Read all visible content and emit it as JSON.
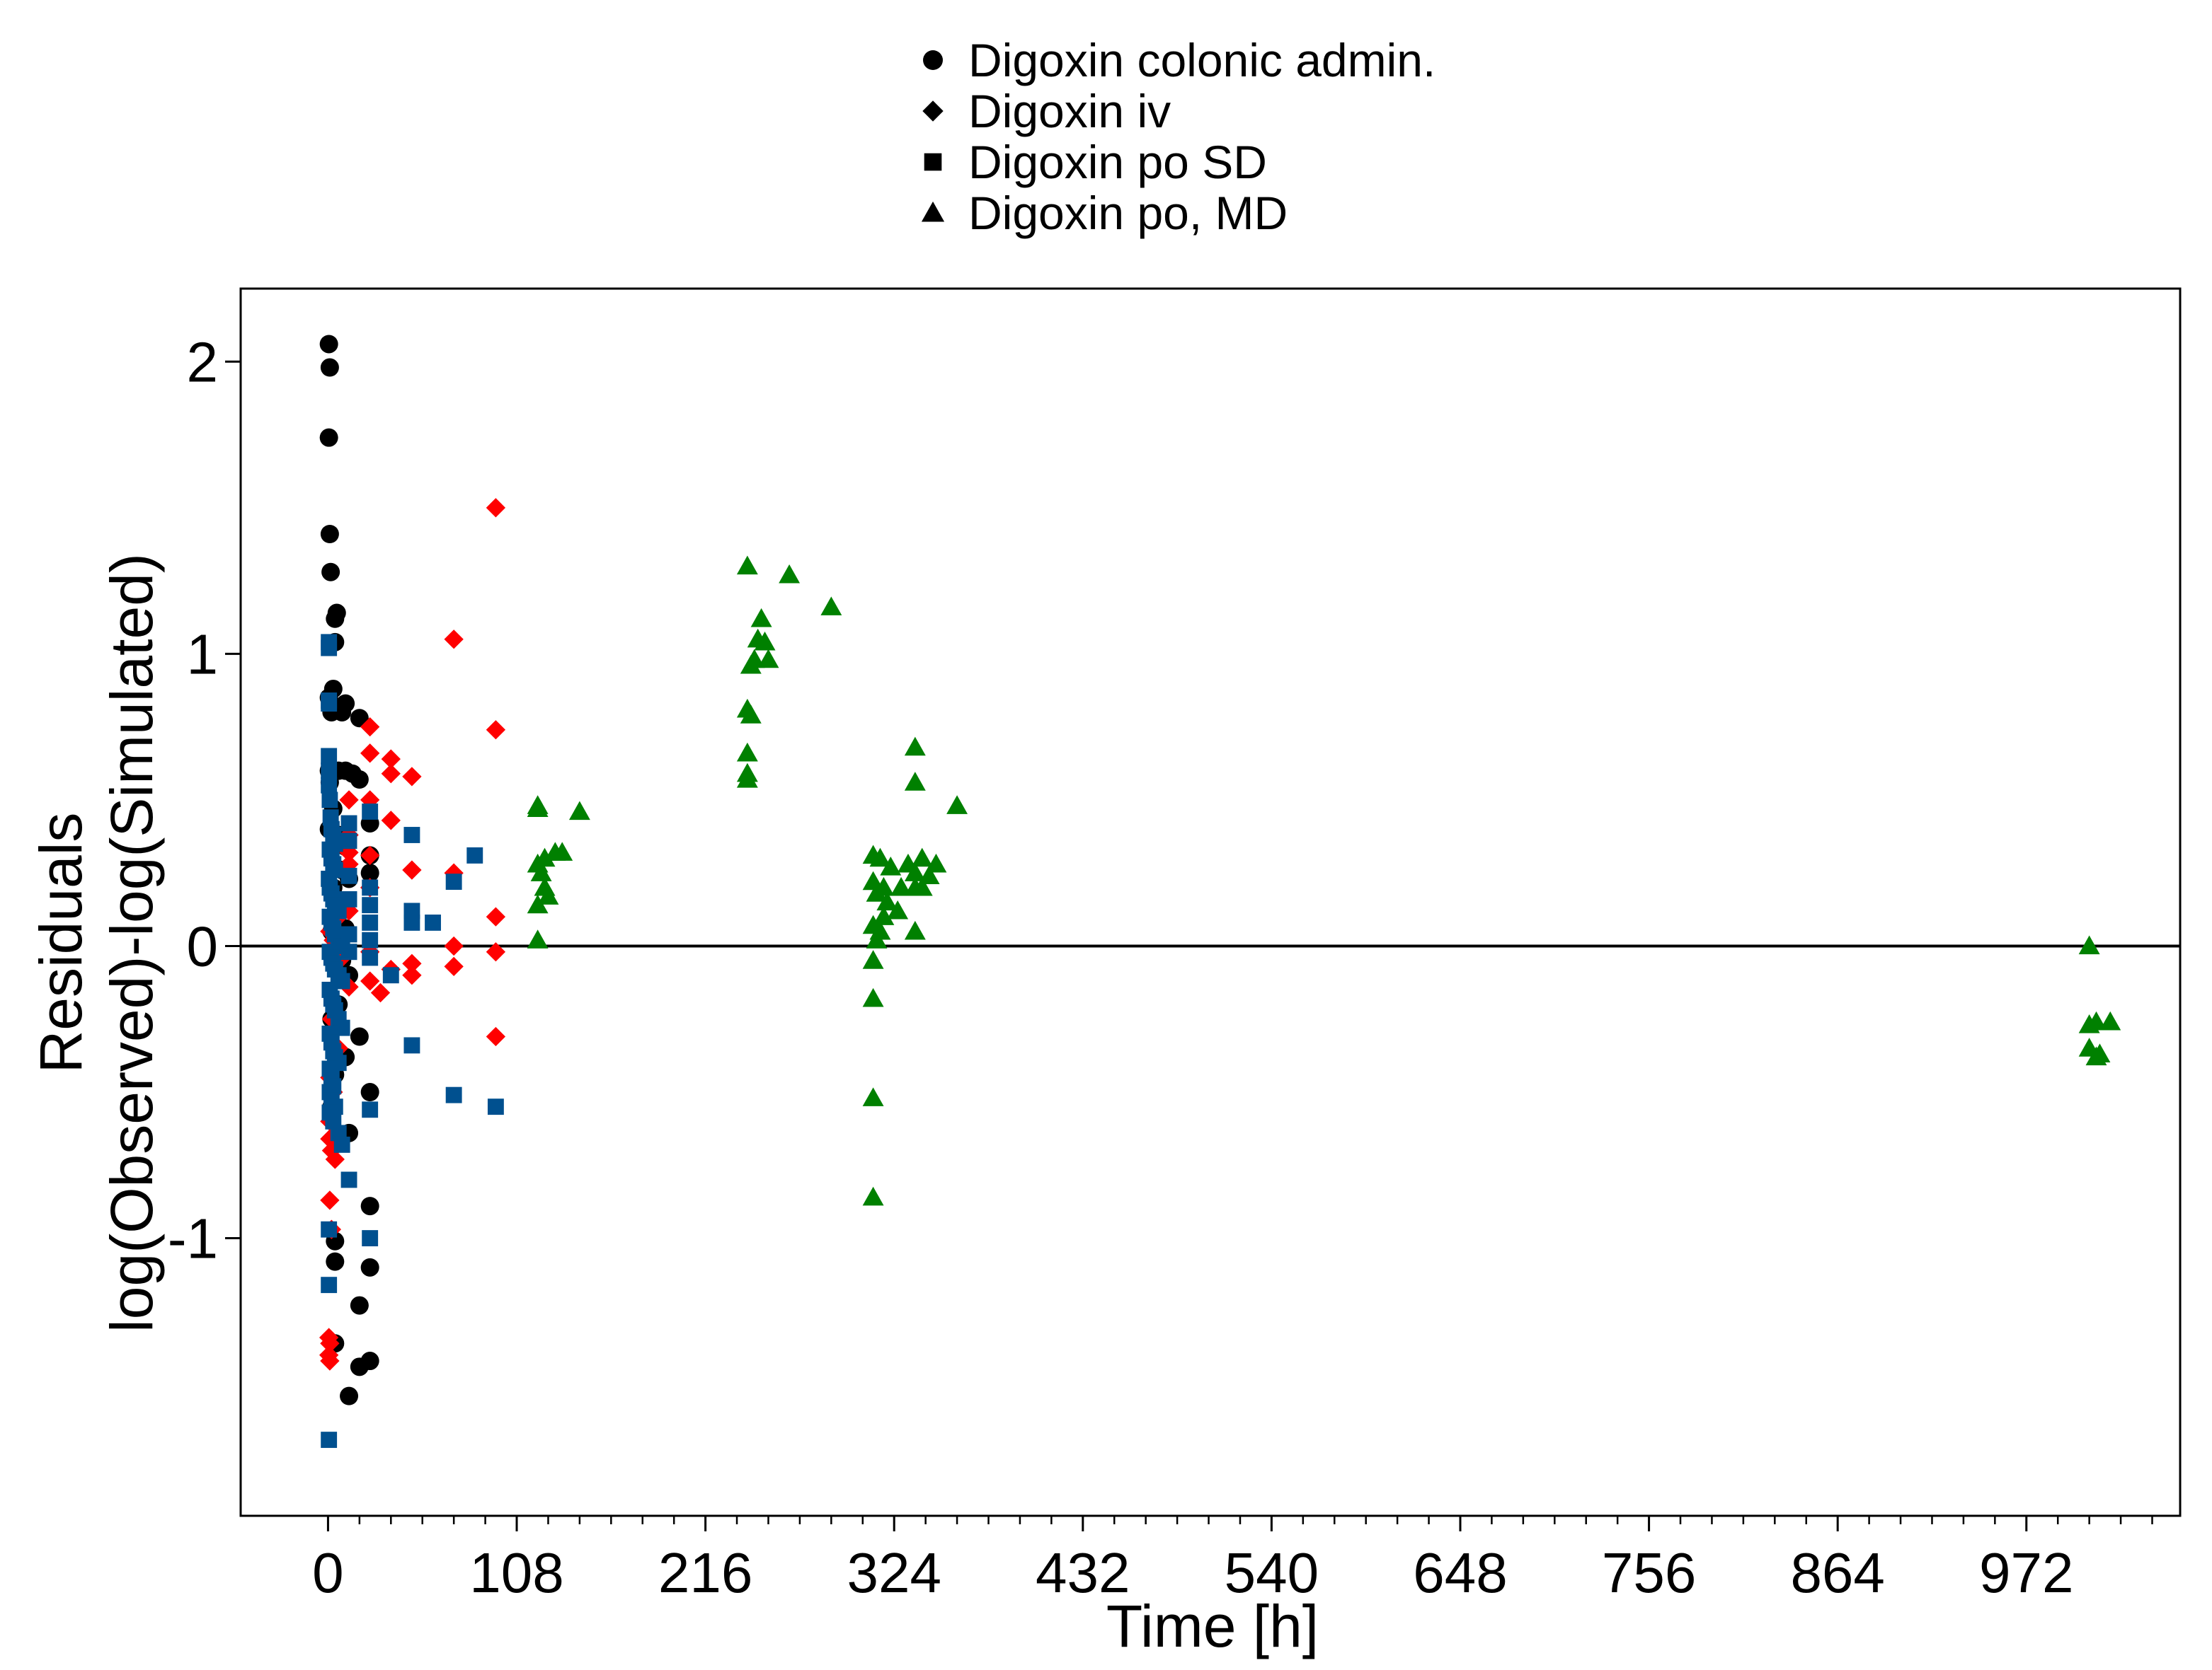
{
  "chart_data": {
    "type": "scatter",
    "title": "",
    "xlabel": "Time [h]",
    "ylabel": [
      "Residuals",
      "log(Observed)-log(Simulated)"
    ],
    "xlim": [
      -50,
      1060
    ],
    "ylim": [
      -1.95,
      2.25
    ],
    "x_ticks": [
      0,
      108,
      216,
      324,
      432,
      540,
      648,
      756,
      864,
      972
    ],
    "x_tick_labels": [
      "0",
      "108",
      "216",
      "324",
      "432",
      "540",
      "648",
      "756",
      "864",
      "972"
    ],
    "x_minor_step": 18,
    "y_ticks": [
      -1,
      0,
      1,
      2
    ],
    "y_tick_labels": [
      "-1",
      "0",
      "1",
      "2"
    ],
    "grid": false,
    "reference_line_y": 0,
    "legend_position": "top-center",
    "legend_marker_color": "#000000",
    "series": [
      {
        "name": "Digoxin colonic admin.",
        "marker": "circle",
        "color": "#000000",
        "points": [
          [
            0.5,
            2.06
          ],
          [
            1,
            1.98
          ],
          [
            0.5,
            1.74
          ],
          [
            1,
            1.41
          ],
          [
            1.5,
            1.28
          ],
          [
            4,
            1.12
          ],
          [
            5,
            1.14
          ],
          [
            4,
            1.04
          ],
          [
            0.5,
            0.85
          ],
          [
            3,
            0.88
          ],
          [
            2,
            0.8
          ],
          [
            10,
            0.83
          ],
          [
            8,
            0.8
          ],
          [
            18,
            0.78
          ],
          [
            6,
            0.6
          ],
          [
            10,
            0.6
          ],
          [
            14,
            0.59
          ],
          [
            18,
            0.57
          ],
          [
            0.5,
            0.6
          ],
          [
            1,
            0.56
          ],
          [
            3,
            0.47
          ],
          [
            24,
            0.42
          ],
          [
            0.5,
            0.4
          ],
          [
            6,
            0.38
          ],
          [
            10,
            0.34
          ],
          [
            24,
            0.31
          ],
          [
            8,
            0.26
          ],
          [
            12,
            0.23
          ],
          [
            24,
            0.25
          ],
          [
            3,
            0.2
          ],
          [
            6,
            0.12
          ],
          [
            10,
            0.06
          ],
          [
            2,
            0.05
          ],
          [
            4,
            -0.02
          ],
          [
            8,
            -0.05
          ],
          [
            12,
            -0.1
          ],
          [
            6,
            -0.2
          ],
          [
            2,
            -0.25
          ],
          [
            18,
            -0.31
          ],
          [
            10,
            -0.38
          ],
          [
            4,
            -0.44
          ],
          [
            24,
            -0.5
          ],
          [
            2,
            -0.55
          ],
          [
            12,
            -0.64
          ],
          [
            24,
            -0.89
          ],
          [
            4,
            -1.01
          ],
          [
            4,
            -1.08
          ],
          [
            24,
            -1.1
          ],
          [
            18,
            -1.23
          ],
          [
            4,
            -1.36
          ],
          [
            18,
            -1.44
          ],
          [
            24,
            -1.42
          ],
          [
            12,
            -1.54
          ]
        ]
      },
      {
        "name": "Digoxin iv",
        "marker": "diamond",
        "color": "#ff0000",
        "points": [
          [
            96,
            1.5
          ],
          [
            72,
            1.05
          ],
          [
            96,
            0.74
          ],
          [
            24,
            0.75
          ],
          [
            24,
            0.66
          ],
          [
            36,
            0.64
          ],
          [
            48,
            0.58
          ],
          [
            36,
            0.59
          ],
          [
            12,
            0.5
          ],
          [
            24,
            0.5
          ],
          [
            36,
            0.43
          ],
          [
            12,
            0.38
          ],
          [
            12,
            0.32
          ],
          [
            24,
            0.31
          ],
          [
            12,
            0.28
          ],
          [
            48,
            0.26
          ],
          [
            72,
            0.25
          ],
          [
            24,
            0.2
          ],
          [
            12,
            0.12
          ],
          [
            6,
            0.1
          ],
          [
            96,
            0.1
          ],
          [
            1,
            0.05
          ],
          [
            3,
            0.02
          ],
          [
            72,
            0
          ],
          [
            96,
            -0.02
          ],
          [
            24,
            -0.02
          ],
          [
            8,
            -0.04
          ],
          [
            48,
            -0.06
          ],
          [
            36,
            -0.08
          ],
          [
            72,
            -0.07
          ],
          [
            48,
            -0.1
          ],
          [
            12,
            -0.14
          ],
          [
            24,
            -0.12
          ],
          [
            30,
            -0.16
          ],
          [
            2,
            -0.25
          ],
          [
            96,
            -0.31
          ],
          [
            6,
            -0.35
          ],
          [
            4,
            -0.4
          ],
          [
            1,
            -0.45
          ],
          [
            3,
            -0.5
          ],
          [
            1,
            -0.6
          ],
          [
            1,
            -0.66
          ],
          [
            2,
            -0.7
          ],
          [
            4,
            -0.73
          ],
          [
            1,
            -0.87
          ],
          [
            2,
            -0.97
          ],
          [
            0.5,
            -1.34
          ],
          [
            1,
            -1.36
          ],
          [
            1,
            -1.42
          ],
          [
            0.5,
            -1.4
          ]
        ]
      },
      {
        "name": "Digoxin po SD",
        "marker": "square",
        "color": "#00508f",
        "points": [
          [
            0.5,
            1.04
          ],
          [
            0.5,
            1.02
          ],
          [
            0.5,
            0.84
          ],
          [
            0.5,
            0.83
          ],
          [
            0.5,
            0.65
          ],
          [
            0.5,
            0.6
          ],
          [
            0.5,
            0.55
          ],
          [
            1,
            0.5
          ],
          [
            1.5,
            0.44
          ],
          [
            2,
            0.4
          ],
          [
            3,
            0.38
          ],
          [
            4,
            0.35
          ],
          [
            1,
            0.33
          ],
          [
            2,
            0.3
          ],
          [
            3,
            0.28
          ],
          [
            4,
            0.26
          ],
          [
            0.5,
            0.23
          ],
          [
            1,
            0.2
          ],
          [
            2,
            0.18
          ],
          [
            3,
            0.16
          ],
          [
            4,
            0.14
          ],
          [
            6,
            0.12
          ],
          [
            1,
            0.1
          ],
          [
            2,
            0.08
          ],
          [
            3,
            0.06
          ],
          [
            4,
            0.04
          ],
          [
            6,
            0.02
          ],
          [
            8,
            0
          ],
          [
            1,
            -0.02
          ],
          [
            2,
            -0.04
          ],
          [
            3,
            -0.06
          ],
          [
            4,
            -0.08
          ],
          [
            6,
            -0.1
          ],
          [
            8,
            -0.12
          ],
          [
            1,
            -0.15
          ],
          [
            2,
            -0.18
          ],
          [
            3,
            -0.2
          ],
          [
            4,
            -0.22
          ],
          [
            6,
            -0.25
          ],
          [
            8,
            -0.28
          ],
          [
            1,
            -0.3
          ],
          [
            2,
            -0.33
          ],
          [
            3,
            -0.36
          ],
          [
            4,
            -0.38
          ],
          [
            6,
            -0.4
          ],
          [
            1,
            -0.42
          ],
          [
            2,
            -0.45
          ],
          [
            3,
            -0.48
          ],
          [
            1,
            -0.5
          ],
          [
            2,
            -0.53
          ],
          [
            4,
            -0.55
          ],
          [
            1,
            -0.57
          ],
          [
            3,
            -0.6
          ],
          [
            6,
            -0.64
          ],
          [
            8,
            -0.68
          ],
          [
            12,
            -0.8
          ],
          [
            0.5,
            -0.97
          ],
          [
            0.5,
            -1.16
          ],
          [
            0.5,
            -1.69
          ],
          [
            12,
            0.42
          ],
          [
            12,
            0.36
          ],
          [
            12,
            0.24
          ],
          [
            12,
            0.16
          ],
          [
            12,
            0.04
          ],
          [
            12,
            -0.02
          ],
          [
            24,
            0.46
          ],
          [
            24,
            0.2
          ],
          [
            24,
            0.14
          ],
          [
            24,
            0.08
          ],
          [
            24,
            0.02
          ],
          [
            24,
            -0.04
          ],
          [
            24,
            -0.56
          ],
          [
            24,
            -1
          ],
          [
            36,
            -0.1
          ],
          [
            48,
            0.38
          ],
          [
            48,
            0.12
          ],
          [
            48,
            0.08
          ],
          [
            48,
            -0.34
          ],
          [
            60,
            0.08
          ],
          [
            72,
            0.22
          ],
          [
            72,
            -0.51
          ],
          [
            84,
            0.31
          ],
          [
            96,
            -0.55
          ]
        ]
      },
      {
        "name": "Digoxin po, MD",
        "marker": "triangle",
        "color": "#008000",
        "points": [
          [
            240,
            1.3
          ],
          [
            264,
            1.27
          ],
          [
            288,
            1.16
          ],
          [
            248,
            1.12
          ],
          [
            246,
            1.05
          ],
          [
            250,
            1.04
          ],
          [
            244,
            0.98
          ],
          [
            252,
            0.98
          ],
          [
            242,
            0.96
          ],
          [
            240,
            0.81
          ],
          [
            242,
            0.79
          ],
          [
            240,
            0.66
          ],
          [
            240,
            0.59
          ],
          [
            240,
            0.57
          ],
          [
            120,
            0.48
          ],
          [
            120,
            0.47
          ],
          [
            144,
            0.46
          ],
          [
            120,
            0.28
          ],
          [
            124,
            0.3
          ],
          [
            130,
            0.32
          ],
          [
            134,
            0.32
          ],
          [
            122,
            0.25
          ],
          [
            124,
            0.2
          ],
          [
            120,
            0.14
          ],
          [
            126,
            0.17
          ],
          [
            120,
            0.02
          ],
          [
            336,
            0.68
          ],
          [
            360,
            0.48
          ],
          [
            336,
            0.56
          ],
          [
            312,
            0.31
          ],
          [
            316,
            0.3
          ],
          [
            340,
            0.3
          ],
          [
            332,
            0.28
          ],
          [
            348,
            0.28
          ],
          [
            322,
            0.27
          ],
          [
            336,
            0.25
          ],
          [
            344,
            0.24
          ],
          [
            312,
            0.22
          ],
          [
            318,
            0.2
          ],
          [
            328,
            0.2
          ],
          [
            336,
            0.2
          ],
          [
            340,
            0.2
          ],
          [
            314,
            0.18
          ],
          [
            320,
            0.15
          ],
          [
            326,
            0.12
          ],
          [
            318,
            0.1
          ],
          [
            312,
            0.07
          ],
          [
            316,
            0.05
          ],
          [
            336,
            0.05
          ],
          [
            314,
            0.02
          ],
          [
            312,
            -0.05
          ],
          [
            312,
            -0.18
          ],
          [
            312,
            -0.52
          ],
          [
            312,
            -0.86
          ],
          [
            1008,
            -0.0
          ],
          [
            1008,
            -0.27
          ],
          [
            1012,
            -0.26
          ],
          [
            1020,
            -0.26
          ],
          [
            1008,
            -0.35
          ],
          [
            1012,
            -0.38
          ],
          [
            1014,
            -0.37
          ]
        ]
      }
    ]
  }
}
